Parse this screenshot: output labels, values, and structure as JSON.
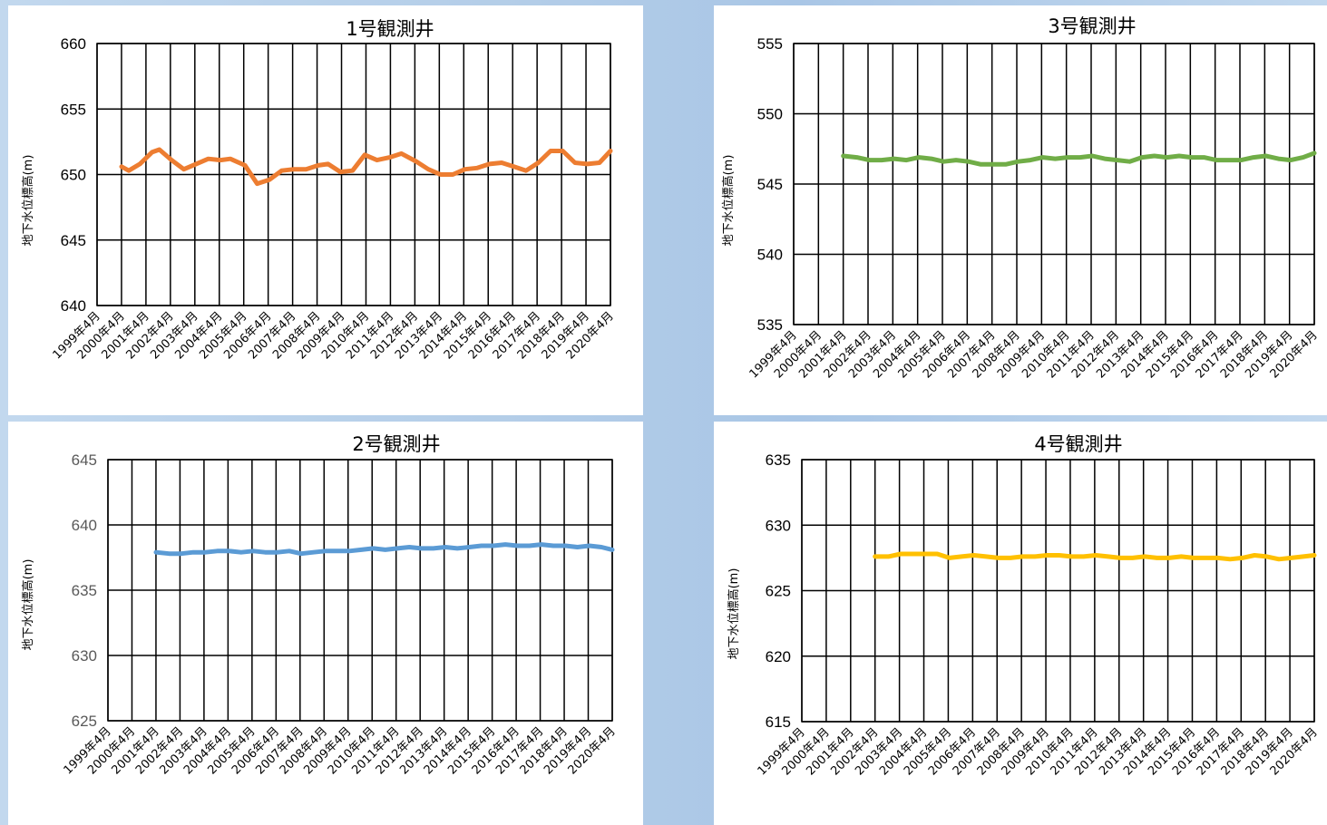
{
  "chart_data": [
    {
      "id": "w1",
      "type": "line",
      "title": "1号観測井",
      "ylabel": "地下水位標高(m)",
      "ylim": [
        640,
        660
      ],
      "yticks": [
        640,
        645,
        650,
        655,
        660
      ],
      "categories": [
        "1999年4月",
        "2000年4月",
        "2001年4月",
        "2002年4月",
        "2003年4月",
        "2004年4月",
        "2005年4月",
        "2006年4月",
        "2007年4月",
        "2008年4月",
        "2009年4月",
        "2010年4月",
        "2011年4月",
        "2012年4月",
        "2013年4月",
        "2014年4月",
        "2015年4月",
        "2016年4月",
        "2017年4月",
        "2018年4月",
        "2019年4月",
        "2020年4月"
      ],
      "x_first": 1999.25,
      "x_last": 2020.25,
      "color": "#ed7d31",
      "grid": true,
      "series": [
        {
          "x": [
            2000.25,
            2000.55,
            2001.0,
            2001.5,
            2001.8,
            2002.3,
            2002.8,
            2003.3,
            2003.8,
            2004.3,
            2004.7,
            2005.3,
            2005.8,
            2006.3,
            2006.8,
            2007.3,
            2007.8,
            2008.3,
            2008.7,
            2009.2,
            2009.7,
            2010.2,
            2010.7,
            2011.2,
            2011.7,
            2012.3,
            2012.8,
            2013.3,
            2013.8,
            2014.3,
            2014.8,
            2015.3,
            2015.8,
            2016.3,
            2016.8,
            2017.3,
            2017.8,
            2018.3,
            2018.8,
            2019.3,
            2019.8,
            2020.25
          ],
          "values": [
            650.6,
            650.3,
            650.8,
            651.7,
            651.9,
            651.1,
            650.4,
            650.8,
            651.2,
            651.1,
            651.2,
            650.7,
            649.3,
            649.6,
            650.3,
            650.4,
            650.4,
            650.7,
            650.8,
            650.2,
            650.3,
            651.5,
            651.1,
            651.3,
            651.6,
            651.0,
            650.4,
            650.0,
            650.0,
            650.4,
            650.5,
            650.8,
            650.9,
            650.6,
            650.3,
            650.9,
            651.8,
            651.8,
            650.9,
            650.8,
            650.9,
            651.8
          ]
        }
      ]
    },
    {
      "id": "w3",
      "type": "line",
      "title": "3号観測井",
      "ylabel": "地下水位標高(m)",
      "ylim": [
        535,
        555
      ],
      "yticks": [
        535,
        540,
        545,
        550,
        555
      ],
      "categories": [
        "1999年4月",
        "2000年4月",
        "2001年4月",
        "2002年4月",
        "2003年4月",
        "2004年4月",
        "2005年4月",
        "2006年4月",
        "2007年4月",
        "2008年4月",
        "2009年4月",
        "2010年4月",
        "2011年4月",
        "2012年4月",
        "2013年4月",
        "2014年4月",
        "2015年4月",
        "2016年4月",
        "2017年4月",
        "2018年4月",
        "2019年4月",
        "2020年4月"
      ],
      "x_first": 1999.25,
      "x_last": 2020.25,
      "color": "#70ad47",
      "grid": true,
      "series": [
        {
          "x": [
            2001.25,
            2001.8,
            2002.3,
            2002.8,
            2003.3,
            2003.8,
            2004.3,
            2004.8,
            2005.3,
            2005.8,
            2006.3,
            2006.8,
            2007.3,
            2007.8,
            2008.3,
            2008.8,
            2009.3,
            2009.8,
            2010.3,
            2010.8,
            2011.3,
            2011.8,
            2012.3,
            2012.8,
            2013.3,
            2013.8,
            2014.3,
            2014.8,
            2015.3,
            2015.8,
            2016.3,
            2016.8,
            2017.3,
            2017.8,
            2018.3,
            2018.8,
            2019.3,
            2019.8,
            2020.25
          ],
          "values": [
            547.0,
            546.9,
            546.7,
            546.7,
            546.8,
            546.7,
            546.9,
            546.8,
            546.6,
            546.7,
            546.6,
            546.4,
            546.4,
            546.4,
            546.6,
            546.7,
            546.9,
            546.8,
            546.9,
            546.9,
            547.0,
            546.8,
            546.7,
            546.6,
            546.9,
            547.0,
            546.9,
            547.0,
            546.9,
            546.9,
            546.7,
            546.7,
            546.7,
            546.9,
            547.0,
            546.8,
            546.7,
            546.9,
            547.2
          ]
        }
      ]
    },
    {
      "id": "w2",
      "type": "line",
      "title": "2号観測井",
      "ylabel": "地下水位標高(m)",
      "ylim": [
        625,
        645
      ],
      "yticks": [
        625,
        630,
        635,
        640,
        645
      ],
      "categories": [
        "1999年4月",
        "2000年4月",
        "2001年4月",
        "2002年4月",
        "2003年4月",
        "2004年4月",
        "2005年4月",
        "2006年4月",
        "2007年4月",
        "2008年4月",
        "2009年4月",
        "2010年4月",
        "2011年4月",
        "2012年4月",
        "2013年4月",
        "2014年4月",
        "2015年4月",
        "2016年4月",
        "2017年4月",
        "2018年4月",
        "2019年4月",
        "2020年4月"
      ],
      "x_first": 1999.25,
      "x_last": 2020.25,
      "color": "#5b9bd5",
      "grid": true,
      "series": [
        {
          "x": [
            2001.25,
            2001.8,
            2002.3,
            2002.8,
            2003.3,
            2003.8,
            2004.3,
            2004.8,
            2005.3,
            2005.8,
            2006.3,
            2006.8,
            2007.3,
            2007.8,
            2008.3,
            2008.8,
            2009.3,
            2009.8,
            2010.3,
            2010.8,
            2011.3,
            2011.8,
            2012.3,
            2012.8,
            2013.3,
            2013.8,
            2014.3,
            2014.8,
            2015.3,
            2015.8,
            2016.3,
            2016.8,
            2017.3,
            2017.8,
            2018.3,
            2018.8,
            2019.3,
            2019.8,
            2020.25
          ],
          "values": [
            637.9,
            637.8,
            637.8,
            637.9,
            637.9,
            638.0,
            638.0,
            637.9,
            638.0,
            637.9,
            637.9,
            638.0,
            637.8,
            637.9,
            638.0,
            638.0,
            638.0,
            638.1,
            638.2,
            638.1,
            638.2,
            638.3,
            638.2,
            638.2,
            638.3,
            638.2,
            638.3,
            638.4,
            638.4,
            638.5,
            638.4,
            638.4,
            638.5,
            638.4,
            638.4,
            638.3,
            638.4,
            638.3,
            638.1
          ]
        }
      ]
    },
    {
      "id": "w4",
      "type": "line",
      "title": "4号観測井",
      "ylabel": "地下水位標高(m)",
      "ylim": [
        615,
        635
      ],
      "yticks": [
        615,
        620,
        625,
        630,
        635
      ],
      "categories": [
        "1999年4月",
        "2000年4月",
        "2001年4月",
        "2002年4月",
        "2003年4月",
        "2004年4月",
        "2005年4月",
        "2006年4月",
        "2007年4月",
        "2008年4月",
        "2009年4月",
        "2010年4月",
        "2011年4月",
        "2012年4月",
        "2013年4月",
        "2014年4月",
        "2015年4月",
        "2016年4月",
        "2017年4月",
        "2018年4月",
        "2019年4月",
        "2020年4月"
      ],
      "x_first": 1999.25,
      "x_last": 2020.25,
      "color": "#ffc000",
      "grid": true,
      "series": [
        {
          "x": [
            2002.25,
            2002.8,
            2003.3,
            2003.8,
            2004.3,
            2004.8,
            2005.3,
            2005.8,
            2006.3,
            2006.8,
            2007.3,
            2007.8,
            2008.3,
            2008.8,
            2009.3,
            2009.8,
            2010.3,
            2010.8,
            2011.3,
            2011.8,
            2012.3,
            2012.8,
            2013.3,
            2013.8,
            2014.3,
            2014.8,
            2015.3,
            2015.8,
            2016.3,
            2016.8,
            2017.3,
            2017.8,
            2018.3,
            2018.8,
            2019.3,
            2019.8,
            2020.25
          ],
          "values": [
            627.6,
            627.6,
            627.8,
            627.8,
            627.8,
            627.8,
            627.5,
            627.6,
            627.7,
            627.6,
            627.5,
            627.5,
            627.6,
            627.6,
            627.7,
            627.7,
            627.6,
            627.6,
            627.7,
            627.6,
            627.5,
            627.5,
            627.6,
            627.5,
            627.5,
            627.6,
            627.5,
            627.5,
            627.5,
            627.4,
            627.5,
            627.7,
            627.6,
            627.4,
            627.5,
            627.6,
            627.7
          ]
        }
      ]
    }
  ]
}
